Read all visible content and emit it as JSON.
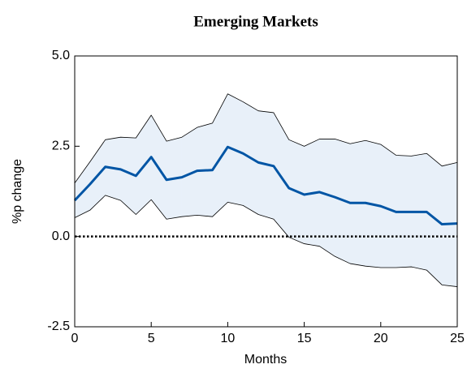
{
  "chart_data": {
    "type": "line",
    "title": "Emerging Markets",
    "x_label": "Months",
    "y_label": "%p change",
    "x": [
      0,
      1,
      2,
      3,
      4,
      5,
      6,
      7,
      8,
      9,
      10,
      11,
      12,
      13,
      14,
      15,
      16,
      17,
      18,
      19,
      20,
      21,
      22,
      23,
      24,
      25
    ],
    "values": [
      1.0,
      1.45,
      1.93,
      1.86,
      1.68,
      2.2,
      1.57,
      1.64,
      1.82,
      1.84,
      2.48,
      2.3,
      2.05,
      1.95,
      1.34,
      1.16,
      1.23,
      1.09,
      0.93,
      0.93,
      0.84,
      0.68,
      0.68,
      0.68,
      0.34,
      0.36
    ],
    "band_upper": [
      1.48,
      2.07,
      2.68,
      2.75,
      2.73,
      3.36,
      2.64,
      2.75,
      3.02,
      3.14,
      3.95,
      3.73,
      3.48,
      3.43,
      2.68,
      2.5,
      2.7,
      2.7,
      2.57,
      2.66,
      2.55,
      2.25,
      2.23,
      2.3,
      1.95,
      2.05
    ],
    "band_lower": [
      0.52,
      0.73,
      1.14,
      1.0,
      0.61,
      1.02,
      0.48,
      0.55,
      0.59,
      0.55,
      0.95,
      0.86,
      0.61,
      0.48,
      -0.02,
      -0.2,
      -0.27,
      -0.55,
      -0.75,
      -0.82,
      -0.86,
      -0.86,
      -0.84,
      -0.93,
      -1.34,
      -1.39
    ],
    "color": "#0055a5",
    "band_color": "#e8f0f9",
    "band_edge_color": "#000000",
    "reference_line": 0,
    "xlim": [
      0,
      25
    ],
    "xticks": [
      0,
      5,
      10,
      15,
      20,
      25
    ],
    "ylim": [
      -2.5,
      5.0
    ],
    "yticks": [
      {
        "value": -2.5,
        "label": "-2.5"
      },
      {
        "value": 0,
        "label": "0.0"
      },
      {
        "value": 2.5,
        "label": "2.5"
      },
      {
        "value": 5.0,
        "label": "5.0"
      }
    ]
  }
}
